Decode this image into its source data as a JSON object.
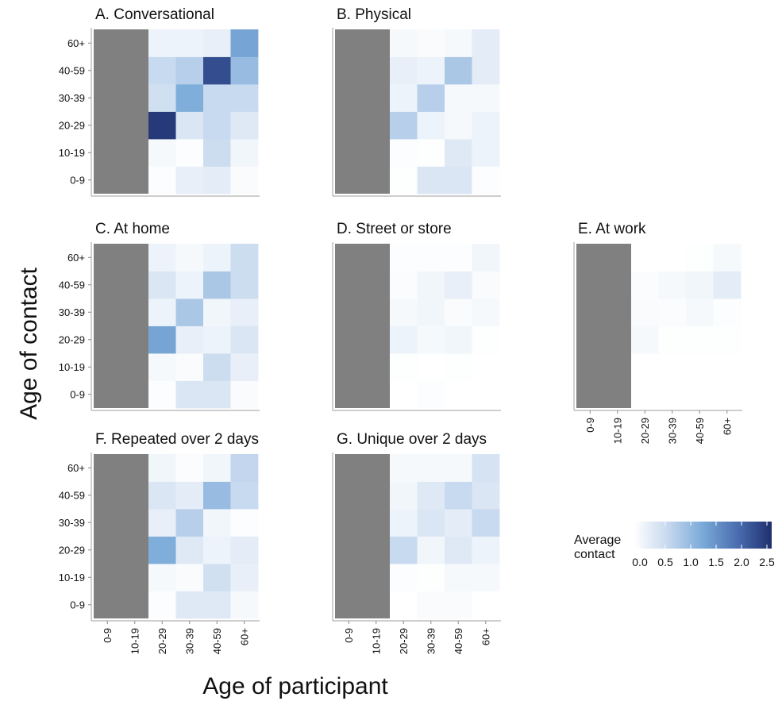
{
  "chart_data": {
    "type": "heatmap",
    "xlabel": "Age of participant",
    "ylabel": "Age of contact",
    "age_groups": [
      "0-9",
      "10-19",
      "20-29",
      "30-39",
      "40-59",
      "60+"
    ],
    "missing_participant_groups": [
      "0-9",
      "10-19"
    ],
    "missing_color": "#808080",
    "color_scale": {
      "title": "Average contact",
      "title_lines": [
        "Average",
        "contact"
      ],
      "domain": [
        0,
        2.5
      ],
      "ticks": [
        0.0,
        0.5,
        1.0,
        1.5,
        2.0,
        2.5
      ],
      "tick_labels": [
        "0.0",
        "0.5",
        "1.0",
        "1.5",
        "2.0",
        "2.5"
      ],
      "colors": [
        "#ffffff",
        "#c6d8ee",
        "#7aaad8",
        "#4a6eb0",
        "#1f2f6e"
      ]
    },
    "panels": [
      {
        "id": "A",
        "title": "A. Conversational",
        "values": [
          [
            null,
            null,
            0.04,
            0.25,
            0.3,
            0.07
          ],
          [
            null,
            null,
            0.1,
            0.04,
            0.55,
            0.15
          ],
          [
            null,
            null,
            2.4,
            0.4,
            0.6,
            0.35
          ],
          [
            null,
            null,
            0.5,
            1.2,
            0.6,
            0.6
          ],
          [
            null,
            null,
            0.6,
            0.75,
            2.2,
            1.0
          ],
          [
            null,
            null,
            0.2,
            0.2,
            0.25,
            1.3
          ]
        ]
      },
      {
        "id": "B",
        "title": "B. Physical",
        "values": [
          [
            null,
            null,
            0.02,
            0.4,
            0.4,
            0.03
          ],
          [
            null,
            null,
            0.04,
            0.02,
            0.35,
            0.2
          ],
          [
            null,
            null,
            0.75,
            0.2,
            0.1,
            0.2
          ],
          [
            null,
            null,
            0.2,
            0.75,
            0.1,
            0.1
          ],
          [
            null,
            null,
            0.25,
            0.2,
            0.85,
            0.3
          ],
          [
            null,
            null,
            0.1,
            0.07,
            0.1,
            0.3
          ]
        ]
      },
      {
        "id": "C",
        "title": "C. At home",
        "values": [
          [
            null,
            null,
            0.04,
            0.4,
            0.4,
            0.07
          ],
          [
            null,
            null,
            0.1,
            0.07,
            0.55,
            0.25
          ],
          [
            null,
            null,
            1.3,
            0.25,
            0.2,
            0.4
          ],
          [
            null,
            null,
            0.2,
            0.85,
            0.15,
            0.25
          ],
          [
            null,
            null,
            0.4,
            0.2,
            0.85,
            0.55
          ],
          [
            null,
            null,
            0.2,
            0.1,
            0.2,
            0.55
          ]
        ]
      },
      {
        "id": "D",
        "title": "D. Street or store",
        "values": [
          [
            null,
            null,
            0.0,
            0.04,
            0.0,
            0.0
          ],
          [
            null,
            null,
            0.02,
            0.0,
            0.02,
            0.0
          ],
          [
            null,
            null,
            0.2,
            0.1,
            0.15,
            0.02
          ],
          [
            null,
            null,
            0.1,
            0.15,
            0.07,
            0.1
          ],
          [
            null,
            null,
            0.05,
            0.15,
            0.25,
            0.07
          ],
          [
            null,
            null,
            0.03,
            0.03,
            0.03,
            0.15
          ]
        ]
      },
      {
        "id": "E",
        "title": "E. At work",
        "values": [
          [
            null,
            null,
            0.0,
            0.0,
            0.0,
            0.0
          ],
          [
            null,
            null,
            0.0,
            0.0,
            0.0,
            0.0
          ],
          [
            null,
            null,
            0.1,
            0.02,
            0.02,
            0.02
          ],
          [
            null,
            null,
            0.07,
            0.05,
            0.1,
            0.04
          ],
          [
            null,
            null,
            0.05,
            0.1,
            0.15,
            0.3
          ],
          [
            null,
            null,
            0.0,
            0.0,
            0.02,
            0.1
          ]
        ]
      },
      {
        "id": "F",
        "title": "F. Repeated over 2 days",
        "values": [
          [
            null,
            null,
            0.03,
            0.35,
            0.35,
            0.1
          ],
          [
            null,
            null,
            0.1,
            0.07,
            0.5,
            0.25
          ],
          [
            null,
            null,
            1.2,
            0.35,
            0.2,
            0.3
          ],
          [
            null,
            null,
            0.25,
            0.75,
            0.15,
            0.04
          ],
          [
            null,
            null,
            0.4,
            0.3,
            1.0,
            0.6
          ],
          [
            null,
            null,
            0.15,
            0.05,
            0.15,
            0.65
          ]
        ]
      },
      {
        "id": "G",
        "title": "G. Unique over 2 days",
        "values": [
          [
            null,
            null,
            0.0,
            0.07,
            0.07,
            0.0
          ],
          [
            null,
            null,
            0.03,
            0.02,
            0.1,
            0.1
          ],
          [
            null,
            null,
            0.6,
            0.15,
            0.35,
            0.2
          ],
          [
            null,
            null,
            0.2,
            0.4,
            0.3,
            0.6
          ],
          [
            null,
            null,
            0.15,
            0.35,
            0.6,
            0.4
          ],
          [
            null,
            null,
            0.1,
            0.1,
            0.1,
            0.45
          ]
        ]
      }
    ]
  }
}
